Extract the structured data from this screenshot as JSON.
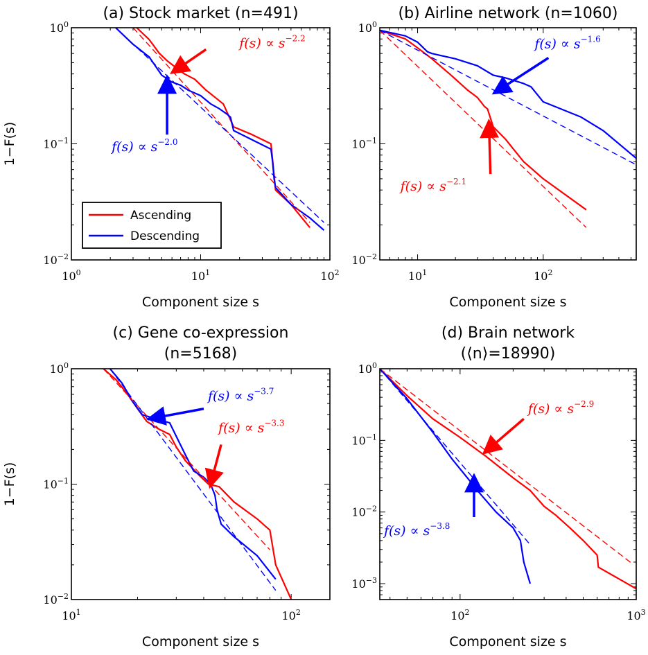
{
  "colors": {
    "ascending": "#ff0000",
    "descending": "#0000ff",
    "frame": "#000000"
  },
  "legend": {
    "ascending": "Ascending",
    "descending": "Descending"
  },
  "chart_data": [
    {
      "type": "line",
      "title": "(a) Stock market (n=491)",
      "xlabel": "Component size s",
      "ylabel": "1−F(s)",
      "xscale": "log",
      "yscale": "log",
      "xlim": [
        1,
        100
      ],
      "ylim": [
        0.01,
        1
      ],
      "xticks": [
        {
          "v": 1,
          "label": "10^0"
        },
        {
          "v": 10,
          "label": "10^1"
        },
        {
          "v": 100,
          "label": "10^2"
        }
      ],
      "yticks": [
        {
          "v": 0.01,
          "label": "10^-2"
        },
        {
          "v": 0.1,
          "label": "10^-1"
        },
        {
          "v": 1,
          "label": "10^0"
        }
      ],
      "legend_position": "lower-left",
      "series": [
        {
          "name": "Ascending",
          "color": "#ff0000",
          "dashed": false,
          "x": [
            3.2,
            4,
            4.8,
            5.5,
            6.5,
            7.5,
            9,
            11,
            13,
            15,
            18,
            25,
            35,
            38,
            50,
            70
          ],
          "y": [
            1.0,
            0.79,
            0.6,
            0.52,
            0.45,
            0.4,
            0.36,
            0.29,
            0.25,
            0.22,
            0.14,
            0.12,
            0.1,
            0.04,
            0.03,
            0.019
          ]
        },
        {
          "name": "Descending",
          "color": "#0000ff",
          "dashed": false,
          "x": [
            2.2,
            3,
            4,
            5,
            6,
            7,
            8,
            10,
            12,
            14,
            16,
            17,
            18,
            35,
            36,
            37,
            38,
            50,
            70,
            90
          ],
          "y": [
            1.0,
            0.72,
            0.56,
            0.39,
            0.34,
            0.32,
            0.29,
            0.26,
            0.22,
            0.2,
            0.18,
            0.17,
            0.13,
            0.09,
            0.07,
            0.05,
            0.042,
            0.03,
            0.023,
            0.018
          ]
        },
        {
          "fit": true,
          "color": "#ff0000",
          "dashed": true,
          "x": [
            3,
            70
          ],
          "y": [
            1.0,
            0.021
          ]
        },
        {
          "fit": true,
          "color": "#0000ff",
          "dashed": true,
          "x": [
            2.2,
            90
          ],
          "y": [
            1.0,
            0.021
          ]
        }
      ],
      "annotations": [
        {
          "text": "f(s) ∝ s",
          "exp": "−2.2",
          "color": "#ff0000",
          "tx": 11,
          "ty": 0.65,
          "ax": 6.2,
          "ay": 0.42,
          "ofs": [
            48,
            -3
          ]
        },
        {
          "text": "f(s) ∝ s",
          "exp": "−2.0",
          "color": "#0000ff",
          "tx": 5.5,
          "ty": 0.12,
          "ax": 5.5,
          "ay": 0.36,
          "ofs": [
            -80,
            24
          ]
        }
      ]
    },
    {
      "type": "line",
      "title": "(b) Airline network (n=1060)",
      "xlabel": "Component size s",
      "ylabel": "",
      "xscale": "log",
      "yscale": "log",
      "xlim": [
        5,
        550
      ],
      "ylim": [
        0.01,
        1
      ],
      "xticks": [
        {
          "v": 10,
          "label": "10^1"
        },
        {
          "v": 100,
          "label": "10^2"
        }
      ],
      "yticks": [
        {
          "v": 0.01,
          "label": "10^-2"
        },
        {
          "v": 0.1,
          "label": "10^-1"
        },
        {
          "v": 1,
          "label": "10^0"
        }
      ],
      "series": [
        {
          "name": "Ascending",
          "color": "#ff0000",
          "dashed": false,
          "x": [
            5,
            8,
            10,
            13,
            18,
            25,
            30,
            34,
            36,
            40,
            50,
            58,
            70,
            100,
            220
          ],
          "y": [
            0.95,
            0.8,
            0.67,
            0.54,
            0.4,
            0.29,
            0.25,
            0.21,
            0.2,
            0.14,
            0.11,
            0.09,
            0.07,
            0.05,
            0.027
          ]
        },
        {
          "name": "Descending",
          "color": "#0000ff",
          "dashed": false,
          "x": [
            5,
            8,
            10,
            12,
            13,
            20,
            30,
            40,
            50,
            70,
            80,
            100,
            200,
            300,
            550
          ],
          "y": [
            0.95,
            0.85,
            0.75,
            0.62,
            0.6,
            0.54,
            0.47,
            0.39,
            0.37,
            0.33,
            0.31,
            0.23,
            0.17,
            0.13,
            0.075
          ]
        },
        {
          "fit": true,
          "color": "#ff0000",
          "dashed": true,
          "x": [
            5,
            220
          ],
          "y": [
            0.95,
            0.019
          ]
        },
        {
          "fit": true,
          "color": "#0000ff",
          "dashed": true,
          "x": [
            5,
            550
          ],
          "y": [
            0.95,
            0.066
          ]
        }
      ],
      "annotations": [
        {
          "text": "f(s) ∝ s",
          "exp": "−1.6",
          "color": "#0000ff",
          "tx": 110,
          "ty": 0.55,
          "ax": 42,
          "ay": 0.28,
          "ofs": [
            -20,
            -14
          ]
        },
        {
          "text": "f(s) ∝ s",
          "exp": "−2.1",
          "color": "#ff0000",
          "tx": 38,
          "ty": 0.055,
          "ax": 37,
          "ay": 0.15,
          "ofs": [
            -130,
            24
          ]
        }
      ]
    },
    {
      "type": "line",
      "title": "(c) Gene co-expression",
      "subtitle": "(n=5168)",
      "xlabel": "Component size s",
      "ylabel": "1−F(s)",
      "xscale": "log",
      "yscale": "log",
      "xlim": [
        10,
        150
      ],
      "ylim": [
        0.01,
        1
      ],
      "xticks": [
        {
          "v": 10,
          "label": "10^1"
        },
        {
          "v": 100,
          "label": "10^2"
        }
      ],
      "yticks": [
        {
          "v": 0.01,
          "label": "10^-2"
        },
        {
          "v": 0.1,
          "label": "10^-1"
        },
        {
          "v": 1,
          "label": "10^0"
        }
      ],
      "series": [
        {
          "name": "Ascending",
          "color": "#ff0000",
          "dashed": false,
          "x": [
            14,
            16,
            18,
            20,
            22,
            25,
            28,
            30,
            33,
            38,
            42,
            47,
            55,
            70,
            80,
            85,
            100
          ],
          "y": [
            1.0,
            0.8,
            0.6,
            0.45,
            0.35,
            0.3,
            0.27,
            0.21,
            0.16,
            0.12,
            0.1,
            0.095,
            0.07,
            0.05,
            0.04,
            0.02,
            0.01
          ]
        },
        {
          "name": "Descending",
          "color": "#0000ff",
          "dashed": false,
          "x": [
            15,
            17,
            19,
            21,
            24,
            28,
            30,
            33,
            36,
            40,
            43,
            45,
            46,
            48,
            55,
            70,
            85
          ],
          "y": [
            1.0,
            0.75,
            0.52,
            0.4,
            0.37,
            0.34,
            0.26,
            0.18,
            0.13,
            0.115,
            0.1,
            0.08,
            0.06,
            0.045,
            0.035,
            0.024,
            0.015
          ]
        },
        {
          "fit": true,
          "color": "#ff0000",
          "dashed": true,
          "x": [
            14,
            80
          ],
          "y": [
            1.0,
            0.027
          ]
        },
        {
          "fit": true,
          "color": "#0000ff",
          "dashed": true,
          "x": [
            15,
            85
          ],
          "y": [
            1.0,
            0.012
          ]
        }
      ],
      "annotations": [
        {
          "text": "f(s) ∝ s",
          "exp": "−3.7",
          "color": "#0000ff",
          "tx": 40,
          "ty": 0.45,
          "ax": 23,
          "ay": 0.37,
          "ofs": [
            6,
            -12
          ]
        },
        {
          "text": "f(s) ∝ s",
          "exp": "−3.3",
          "color": "#ff0000",
          "tx": 48,
          "ty": 0.22,
          "ax": 43,
          "ay": 0.1,
          "ofs": [
            -4,
            -18
          ]
        }
      ]
    },
    {
      "type": "line",
      "title": "(d) Brain network",
      "subtitle": "(⟨n⟩=18990)",
      "xlabel": "Component size s",
      "ylabel": "",
      "xscale": "log",
      "yscale": "log",
      "xlim": [
        35,
        1000
      ],
      "ylim": [
        0.0006,
        1
      ],
      "xticks": [
        {
          "v": 100,
          "label": "10^2"
        },
        {
          "v": 1000,
          "label": "10^3"
        }
      ],
      "yticks": [
        {
          "v": 0.001,
          "label": "10^-3"
        },
        {
          "v": 0.01,
          "label": "10^-2"
        },
        {
          "v": 0.1,
          "label": "10^-1"
        },
        {
          "v": 1,
          "label": "10^0"
        }
      ],
      "series": [
        {
          "name": "Ascending",
          "color": "#ff0000",
          "dashed": false,
          "x": [
            35,
            50,
            70,
            100,
            140,
            200,
            250,
            300,
            350,
            420,
            500,
            600,
            610,
            1000
          ],
          "y": [
            1.0,
            0.42,
            0.2,
            0.11,
            0.06,
            0.03,
            0.02,
            0.012,
            0.009,
            0.006,
            0.004,
            0.0025,
            0.0017,
            0.00085
          ]
        },
        {
          "name": "Descending",
          "color": "#0000ff",
          "dashed": false,
          "x": [
            35,
            50,
            70,
            90,
            110,
            130,
            160,
            200,
            220,
            230,
            250
          ],
          "y": [
            1.0,
            0.38,
            0.13,
            0.055,
            0.03,
            0.018,
            0.01,
            0.006,
            0.004,
            0.002,
            0.001
          ]
        },
        {
          "fit": true,
          "color": "#ff0000",
          "dashed": true,
          "x": [
            35,
            950
          ],
          "y": [
            1.0,
            0.0019
          ]
        },
        {
          "fit": true,
          "color": "#0000ff",
          "dashed": true,
          "x": [
            35,
            250
          ],
          "y": [
            1.0,
            0.0035
          ]
        }
      ],
      "annotations": [
        {
          "text": "f(s) ∝ s",
          "exp": "−2.9",
          "color": "#ff0000",
          "tx": 230,
          "ty": 0.2,
          "ax": 140,
          "ay": 0.07,
          "ofs": [
            6,
            -8
          ]
        },
        {
          "text": "f(s) ∝ s",
          "exp": "−3.8",
          "color": "#0000ff",
          "tx": 120,
          "ty": 0.0085,
          "ax": 120,
          "ay": 0.03,
          "ofs": [
            -130,
            26
          ]
        }
      ]
    }
  ]
}
